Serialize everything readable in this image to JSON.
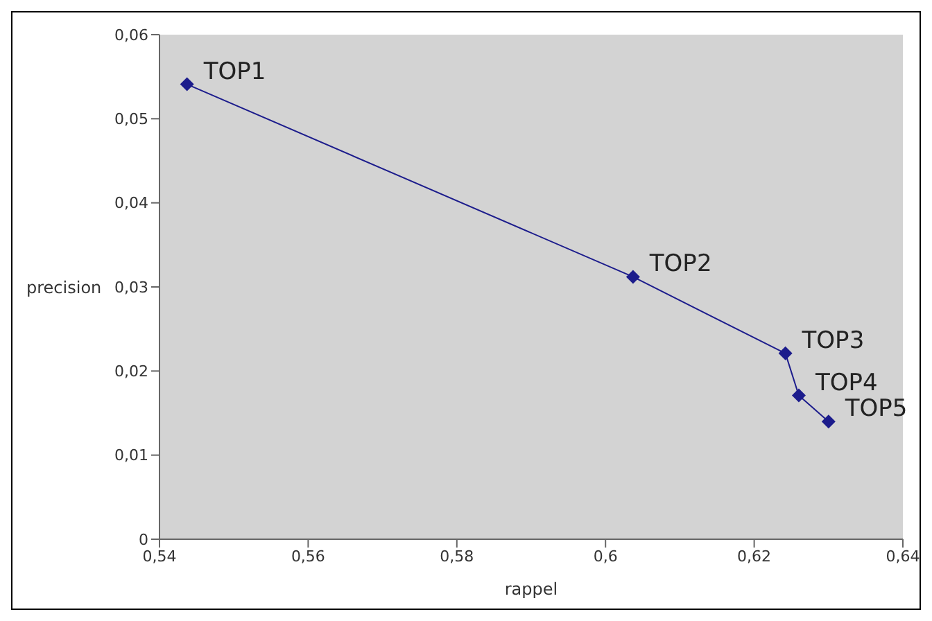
{
  "chart_data": {
    "type": "line",
    "xlabel": "rappel",
    "ylabel": "precision",
    "x": [
      0.5437,
      0.6037,
      0.6242,
      0.626,
      0.63
    ],
    "series": [
      {
        "color": "#1c1c8c",
        "values": [
          0.0541,
          0.0312,
          0.0221,
          0.0171,
          0.014
        ]
      }
    ],
    "xlim": [
      0.54,
      0.64
    ],
    "xticks": [
      {
        "value": 0.54,
        "label": "0,54"
      },
      {
        "value": 0.56,
        "label": "0,56"
      },
      {
        "value": 0.58,
        "label": "0,58"
      },
      {
        "value": 0.6,
        "label": "0,6"
      },
      {
        "value": 0.62,
        "label": "0,62"
      },
      {
        "value": 0.64,
        "label": "0,64"
      }
    ],
    "ylim": [
      0,
      0.06
    ],
    "yticks": [
      0,
      {
        "value": 0.01,
        "label": "0,01"
      },
      {
        "value": 0.02,
        "label": "0,02"
      },
      {
        "value": 0.03,
        "label": "0,03"
      },
      {
        "value": 0.04,
        "label": "0,04"
      },
      {
        "value": 0.05,
        "label": "0,05"
      },
      {
        "value": 0.06,
        "label": "0,06"
      }
    ],
    "marker": "diamond",
    "line_style": "solid",
    "grid": false,
    "legend": false,
    "annotations": [
      {
        "text": "TOP1",
        "x": 0.5437,
        "y": 0.0541
      },
      {
        "text": "TOP2",
        "x": 0.6037,
        "y": 0.0312
      },
      {
        "text": "TOP3",
        "x": 0.6242,
        "y": 0.0221
      },
      {
        "text": "TOP4",
        "x": 0.626,
        "y": 0.0171
      },
      {
        "text": "TOP5",
        "x": 0.63,
        "y": 0.014
      }
    ]
  }
}
